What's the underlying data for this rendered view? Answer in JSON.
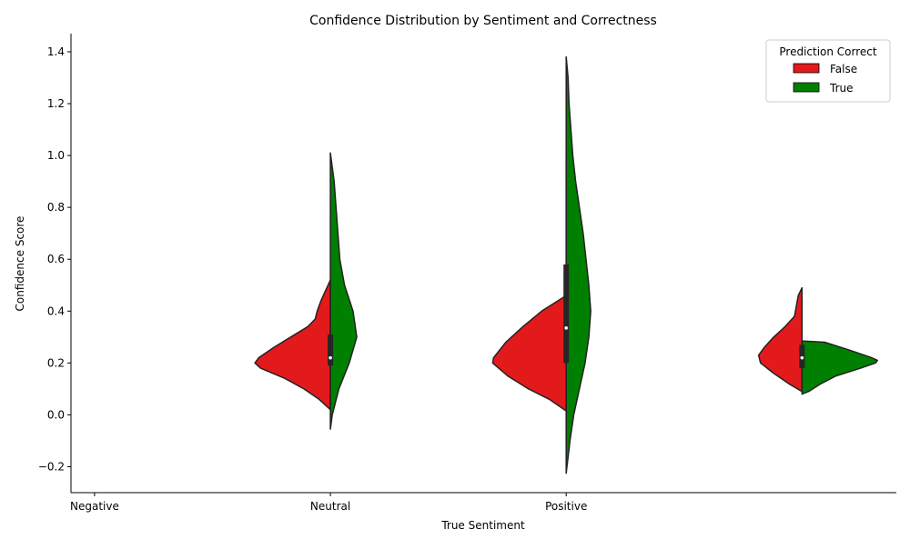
{
  "chart_data": {
    "type": "violin",
    "title": "Confidence Distribution by Sentiment and Correctness",
    "xlabel": "True Sentiment",
    "ylabel": "Confidence Score",
    "categories": [
      "Negative",
      "Neutral",
      "Positive"
    ],
    "ylim": [
      -0.3,
      1.47
    ],
    "yticks": [
      -0.2,
      0.0,
      0.2,
      0.4,
      0.6,
      0.8,
      1.0,
      1.2,
      1.4
    ],
    "ytick_labels": [
      "−0.2",
      "0.0",
      "0.2",
      "0.4",
      "0.6",
      "0.8",
      "1.0",
      "1.2",
      "1.4"
    ],
    "grid": false,
    "legend": {
      "title": "Prediction Correct",
      "placement": "top-right",
      "entries": [
        {
          "label": "False",
          "color": "#e31a1c"
        },
        {
          "label": "True",
          "color": "#008000"
        }
      ]
    },
    "violins": [
      {
        "slot": 1,
        "false_profile": [
          [
            0.02,
            0.0
          ],
          [
            0.06,
            0.12
          ],
          [
            0.1,
            0.28
          ],
          [
            0.14,
            0.48
          ],
          [
            0.18,
            0.74
          ],
          [
            0.2,
            0.8
          ],
          [
            0.22,
            0.76
          ],
          [
            0.26,
            0.6
          ],
          [
            0.3,
            0.42
          ],
          [
            0.34,
            0.24
          ],
          [
            0.37,
            0.16
          ],
          [
            0.4,
            0.14
          ],
          [
            0.44,
            0.1
          ],
          [
            0.48,
            0.05
          ],
          [
            0.52,
            0.0
          ]
        ],
        "true_profile": [
          [
            -0.055,
            0.0
          ],
          [
            0.0,
            0.02
          ],
          [
            0.1,
            0.09
          ],
          [
            0.2,
            0.2
          ],
          [
            0.3,
            0.28
          ],
          [
            0.4,
            0.24
          ],
          [
            0.5,
            0.15
          ],
          [
            0.6,
            0.1
          ],
          [
            0.7,
            0.08
          ],
          [
            0.8,
            0.06
          ],
          [
            0.9,
            0.04
          ],
          [
            1.01,
            0.0
          ]
        ],
        "quartiles": [
          0.19,
          0.31
        ],
        "whisker": [
          0.19,
          0.31
        ],
        "median": 0.22
      },
      {
        "slot": 2,
        "false_profile": [
          [
            0.015,
            0.0
          ],
          [
            0.06,
            0.18
          ],
          [
            0.1,
            0.4
          ],
          [
            0.15,
            0.62
          ],
          [
            0.2,
            0.78
          ],
          [
            0.22,
            0.77
          ],
          [
            0.28,
            0.64
          ],
          [
            0.34,
            0.46
          ],
          [
            0.4,
            0.26
          ],
          [
            0.46,
            0.0
          ]
        ],
        "true_profile": [
          [
            -0.225,
            0.0
          ],
          [
            -0.1,
            0.04
          ],
          [
            0.0,
            0.08
          ],
          [
            0.1,
            0.14
          ],
          [
            0.2,
            0.2
          ],
          [
            0.3,
            0.24
          ],
          [
            0.4,
            0.26
          ],
          [
            0.5,
            0.24
          ],
          [
            0.6,
            0.21
          ],
          [
            0.7,
            0.18
          ],
          [
            0.8,
            0.14
          ],
          [
            0.9,
            0.1
          ],
          [
            1.0,
            0.07
          ],
          [
            1.1,
            0.05
          ],
          [
            1.2,
            0.03
          ],
          [
            1.3,
            0.02
          ],
          [
            1.38,
            0.0
          ]
        ],
        "quartiles": [
          0.2,
          0.58
        ],
        "whisker": [
          0.2,
          1.0
        ],
        "median": 0.335
      },
      {
        "slot": 3,
        "false_profile": [
          [
            0.09,
            0.0
          ],
          [
            0.12,
            0.14
          ],
          [
            0.16,
            0.3
          ],
          [
            0.2,
            0.44
          ],
          [
            0.23,
            0.46
          ],
          [
            0.26,
            0.4
          ],
          [
            0.3,
            0.3
          ],
          [
            0.34,
            0.18
          ],
          [
            0.38,
            0.08
          ],
          [
            0.42,
            0.06
          ],
          [
            0.46,
            0.04
          ],
          [
            0.49,
            0.0
          ]
        ],
        "true_profile": [
          [
            0.08,
            0.0
          ],
          [
            0.09,
            0.07
          ],
          [
            0.12,
            0.2
          ],
          [
            0.15,
            0.36
          ],
          [
            0.18,
            0.62
          ],
          [
            0.2,
            0.78
          ],
          [
            0.21,
            0.8
          ],
          [
            0.22,
            0.74
          ],
          [
            0.25,
            0.5
          ],
          [
            0.28,
            0.24
          ],
          [
            0.285,
            0.0
          ]
        ],
        "quartiles": [
          0.18,
          0.27
        ],
        "whisker": [
          0.18,
          0.27
        ],
        "median": 0.22
      }
    ]
  }
}
